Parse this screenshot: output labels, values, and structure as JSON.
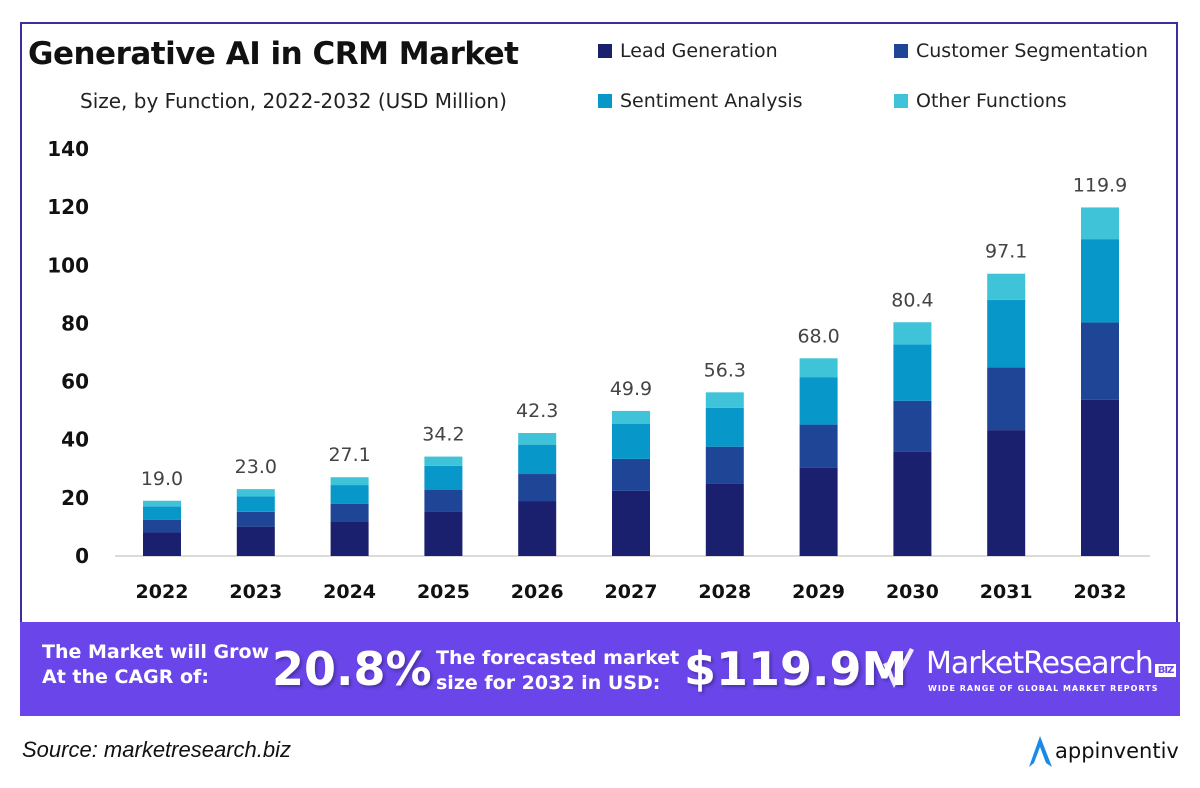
{
  "chart_data": {
    "type": "bar",
    "stacked": true,
    "title": "Generative AI in CRM Market",
    "subtitle": "Size, by Function, 2022-2032 (USD Million)",
    "categories": [
      "2022",
      "2023",
      "2024",
      "2025",
      "2026",
      "2027",
      "2028",
      "2029",
      "2030",
      "2031",
      "2032"
    ],
    "series": [
      {
        "name": "Lead Generation",
        "color": "#1a1f6e",
        "values": [
          8.1,
          10.1,
          11.7,
          15.4,
          18.9,
          22.4,
          25.0,
          30.4,
          35.9,
          43.3,
          53.7
        ]
      },
      {
        "name": "Customer Segmentation",
        "color": "#1f4596",
        "values": [
          4.3,
          5.1,
          6.3,
          7.3,
          9.3,
          11.0,
          12.6,
          14.8,
          17.5,
          21.6,
          26.6
        ]
      },
      {
        "name": "Sentiment Analysis",
        "color": "#0797c9",
        "values": [
          4.6,
          5.3,
          6.4,
          8.3,
          10.1,
          12.0,
          13.4,
          16.2,
          19.4,
          23.2,
          28.7
        ]
      },
      {
        "name": "Other Functions",
        "color": "#3fc3d8",
        "values": [
          2.0,
          2.5,
          2.7,
          3.2,
          4.0,
          4.5,
          5.3,
          6.6,
          7.6,
          9.0,
          10.9
        ]
      }
    ],
    "totals": [
      "19.0",
      "23.0",
      "27.1",
      "34.2",
      "42.3",
      "49.9",
      "56.3",
      "68.0",
      "80.4",
      "97.1",
      "119.9"
    ],
    "yticks": [
      0,
      20,
      40,
      60,
      80,
      100,
      120,
      140
    ],
    "ylim": [
      0,
      140
    ],
    "grid": false,
    "legend": "top-right"
  },
  "banner": {
    "color": "#6a46ea",
    "cagr_label_1": "The Market will Grow",
    "cagr_label_2": "At the CAGR of:",
    "cagr_value": "20.8%",
    "forecast_label_1": "The forecasted market",
    "forecast_label_2": "size for 2032 in USD:",
    "forecast_value": "$119.9M",
    "brand": "MarketResearch",
    "brand_badge": "BIZ",
    "brand_tagline": "WIDE RANGE OF GLOBAL MARKET REPORTS"
  },
  "source": "Source: marketresearch.biz",
  "logo": {
    "text": "appinventiv",
    "icon": "appinventiv-a-icon",
    "color": "#1a8ae6"
  }
}
